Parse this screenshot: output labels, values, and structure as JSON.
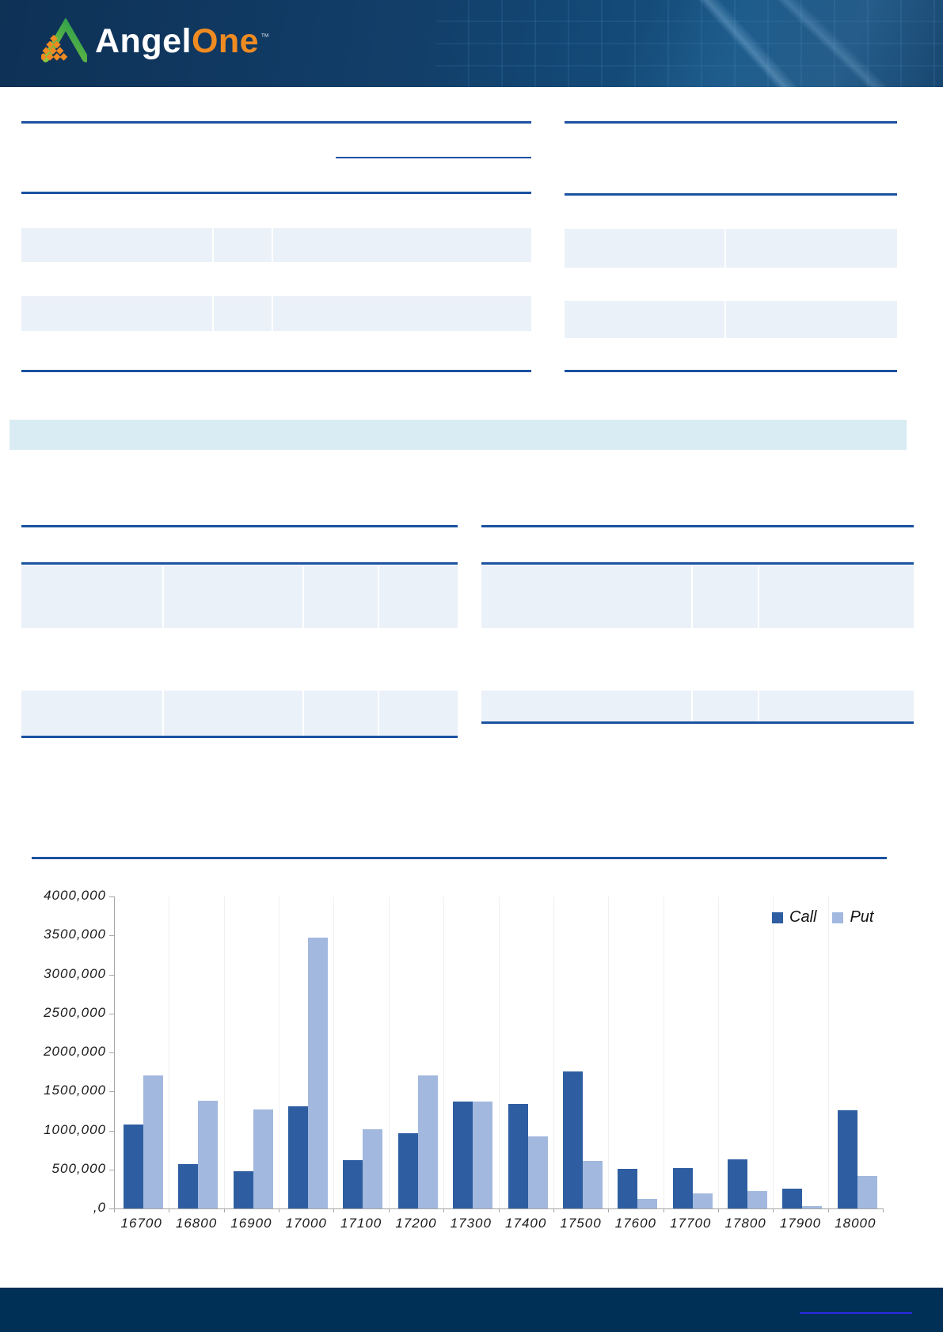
{
  "header": {
    "brand": {
      "angel": "Angel",
      "one": "One",
      "tm": "™"
    }
  },
  "palette": {
    "header_navy": "#123f6a",
    "footer_navy": "#003056",
    "rule_blue": "#1b52a0",
    "table_row_fill": "#ebf1f8",
    "banner_fill": "#d9ecf4",
    "footer_link_blue": "#2b2be0"
  },
  "chart_data": {
    "type": "bar",
    "title": "",
    "xlabel": "",
    "ylabel": "",
    "categories": [
      "16700",
      "16800",
      "16900",
      "17000",
      "17100",
      "17200",
      "17300",
      "17400",
      "17500",
      "17600",
      "17700",
      "17800",
      "17900",
      "18000"
    ],
    "series": [
      {
        "name": "Call",
        "color": "#2e5ea1",
        "values": [
          1080000,
          570000,
          480000,
          1310000,
          620000,
          960000,
          1370000,
          1340000,
          1760000,
          510000,
          520000,
          630000,
          250000,
          1260000
        ]
      },
      {
        "name": "Put",
        "color": "#a2b8de",
        "values": [
          1710000,
          1380000,
          1270000,
          3470000,
          1020000,
          1710000,
          1370000,
          920000,
          610000,
          120000,
          190000,
          220000,
          30000,
          420000
        ]
      }
    ],
    "y_axis": {
      "min": 0,
      "max": 4000000,
      "tick_labels": [
        "4000,000",
        "3500,000",
        "3000,000",
        "2500,000",
        "2000,000",
        "1500,000",
        "1000,000",
        "500,000",
        ",0"
      ],
      "tick_values": [
        4000000,
        3500000,
        3000000,
        2500000,
        2000000,
        1500000,
        1000000,
        500000,
        0
      ]
    },
    "legend_position": "top-right",
    "grid": "faint-vertical-only"
  }
}
